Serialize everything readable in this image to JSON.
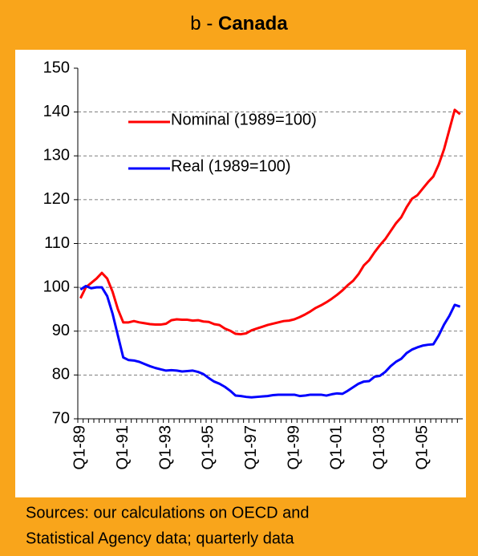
{
  "chart_data": {
    "type": "line",
    "title": [
      "b -",
      "Canada"
    ],
    "source": [
      "Sources: our calculations on OECD and",
      "Statistical Agency data; quarterly data"
    ],
    "categories": [
      "Q1-89",
      null,
      null,
      null,
      null,
      null,
      null,
      null,
      "Q1-91",
      null,
      null,
      null,
      null,
      null,
      null,
      null,
      "Q1-93",
      null,
      null,
      null,
      null,
      null,
      null,
      null,
      "Q1-95",
      null,
      null,
      null,
      null,
      null,
      null,
      null,
      "Q1-97",
      null,
      null,
      null,
      null,
      null,
      null,
      null,
      "Q1-99",
      null,
      null,
      null,
      null,
      null,
      null,
      null,
      "Q1-01",
      null,
      null,
      null,
      null,
      null,
      null,
      null,
      "Q1-03",
      null,
      null,
      null,
      null,
      null,
      null,
      null,
      "Q1-05",
      null,
      null,
      null,
      null,
      null,
      null,
      null
    ],
    "series": [
      {
        "name": "Nominal (1989=100)",
        "color": "#ff0000",
        "values": [
          97.5,
          100,
          101,
          102,
          103.3,
          102,
          99,
          95,
          92,
          92,
          92.3,
          92,
          91.8,
          91.6,
          91.5,
          91.5,
          91.7,
          92.5,
          92.7,
          92.6,
          92.6,
          92.4,
          92.5,
          92.2,
          92.1,
          91.6,
          91.4,
          90.6,
          90.1,
          89.4,
          89.3,
          89.5,
          90.2,
          90.6,
          91,
          91.4,
          91.7,
          92,
          92.3,
          92.4,
          92.7,
          93.2,
          93.8,
          94.5,
          95.3,
          95.9,
          96.6,
          97.4,
          98.3,
          99.3,
          100.5,
          101.5,
          103,
          105,
          106.2,
          108,
          109.6,
          111,
          112.8,
          114.6,
          116,
          118.3,
          120.2,
          121,
          122.5,
          124,
          125.3,
          128,
          131.5,
          136,
          140.5,
          139.5
        ]
      },
      {
        "name": "Real (1989=100)",
        "color": "#0000ff",
        "values": [
          99.5,
          100.3,
          99.8,
          100,
          100,
          98,
          94,
          89,
          84,
          83.4,
          83.3,
          83,
          82.5,
          82,
          81.6,
          81.3,
          81,
          81.1,
          81,
          80.8,
          80.9,
          81,
          80.7,
          80.2,
          79.3,
          78.5,
          78,
          77.3,
          76.4,
          75.3,
          75.2,
          75,
          74.9,
          75,
          75.1,
          75.2,
          75.4,
          75.5,
          75.5,
          75.5,
          75.5,
          75.2,
          75.3,
          75.5,
          75.5,
          75.5,
          75.3,
          75.6,
          75.8,
          75.7,
          76.4,
          77.2,
          78,
          78.5,
          78.6,
          79.6,
          79.8,
          80.7,
          82,
          83,
          83.7,
          85,
          85.8,
          86.3,
          86.7,
          86.9,
          87,
          89,
          91.5,
          93.5,
          96,
          95.6
        ]
      }
    ],
    "ylim": [
      70,
      150
    ],
    "yticks": [
      70,
      80,
      90,
      100,
      110,
      120,
      130,
      140,
      150
    ],
    "grid": true
  }
}
